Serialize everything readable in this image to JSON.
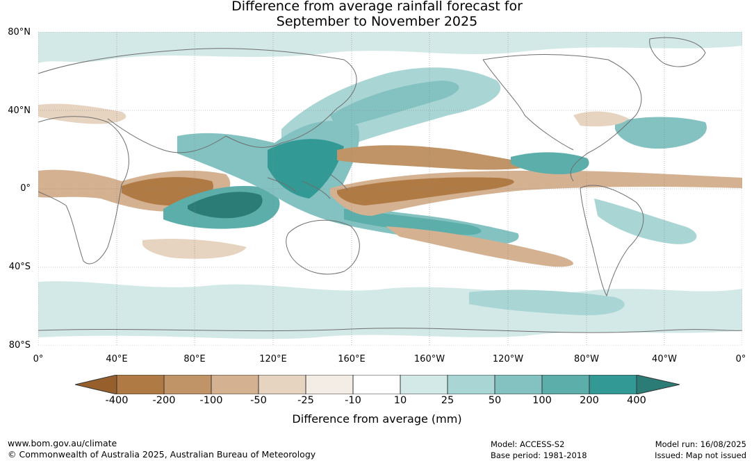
{
  "header": {
    "title_line1": "Difference from average rainfall forecast for",
    "title_line2": "September to November 2025"
  },
  "map": {
    "latitude_labels": [
      "80°N",
      "40°N",
      "0°",
      "40°S",
      "80°S"
    ],
    "longitude_labels": [
      "0°",
      "40°E",
      "80°E",
      "120°E",
      "160°E",
      "160°W",
      "120°W",
      "80°W",
      "40°W",
      "0°"
    ],
    "colors": {
      "ocean_land_background": "#ffffff",
      "coastline": "#6e6e6e",
      "gridline": "#888888"
    },
    "regions": [
      {
        "name": "west-indian-ocean-dry",
        "level": -200
      },
      {
        "name": "east-indian-ocean-wet",
        "level": 400
      },
      {
        "name": "maritime-continent-wet",
        "level": 200
      },
      {
        "name": "central-pacific-equatorial-dry",
        "level": -200
      },
      {
        "name": "south-pacific-convergence-wet",
        "level": 200
      },
      {
        "name": "north-pacific-subtropical-dry",
        "level": -100
      },
      {
        "name": "eastern-pacific-itcz-wet",
        "level": 200
      },
      {
        "name": "atlantic-equatorial-dry",
        "level": -100
      },
      {
        "name": "north-atlantic-wet",
        "level": 100
      }
    ]
  },
  "colorbar": {
    "ticks": [
      "-400",
      "-200",
      "-100",
      "-50",
      "-25",
      "-10",
      "10",
      "25",
      "50",
      "100",
      "200",
      "400"
    ],
    "colors": [
      "#975f2b",
      "#b07a44",
      "#c19468",
      "#d4b190",
      "#e6d3c0",
      "#f3ede6",
      "#ffffff",
      "#d3e9e7",
      "#a9d6d4",
      "#83c2c1",
      "#5caeab",
      "#339995",
      "#2b7b76"
    ],
    "label": "Difference from average (mm)"
  },
  "footer": {
    "website": "www.bom.gov.au/climate",
    "copyright": "© Commonwealth of Australia 2025, Australian Bureau of Meteorology",
    "model": "Model: ACCESS-S2",
    "base_period": "Base period: 1981-2018",
    "model_run": "Model run: 16/08/2025",
    "issued": "Issued: Map not issued"
  }
}
